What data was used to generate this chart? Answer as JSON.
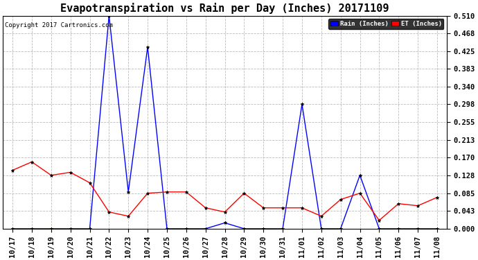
{
  "title": "Evapotranspiration vs Rain per Day (Inches) 20171109",
  "copyright_text": "Copyright 2017 Cartronics.com",
  "legend_rain": "Rain (Inches)",
  "legend_et": "ET (Inches)",
  "x_labels": [
    "10/17",
    "10/18",
    "10/19",
    "10/20",
    "10/21",
    "10/22",
    "10/23",
    "10/24",
    "10/25",
    "10/26",
    "10/27",
    "10/28",
    "10/29",
    "10/30",
    "10/31",
    "11/01",
    "11/02",
    "11/03",
    "11/04",
    "11/05",
    "11/06",
    "11/07",
    "11/08"
  ],
  "rain_values": [
    0.0,
    0.0,
    0.0,
    0.0,
    0.0,
    0.51,
    0.088,
    0.435,
    0.0,
    0.0,
    0.0,
    0.014,
    0.0,
    0.0,
    0.0,
    0.298,
    0.0,
    0.0,
    0.128,
    0.0,
    0.0,
    0.0,
    0.0
  ],
  "et_values": [
    0.14,
    0.16,
    0.128,
    0.135,
    0.11,
    0.04,
    0.03,
    0.085,
    0.088,
    0.088,
    0.05,
    0.04,
    0.085,
    0.05,
    0.05,
    0.05,
    0.03,
    0.07,
    0.085,
    0.02,
    0.06,
    0.055,
    0.075
  ],
  "ylim": [
    0.0,
    0.51
  ],
  "yticks": [
    0.0,
    0.043,
    0.085,
    0.128,
    0.17,
    0.213,
    0.255,
    0.298,
    0.34,
    0.383,
    0.425,
    0.468,
    0.51
  ],
  "rain_color": "#0000ff",
  "et_color": "#ff0000",
  "grid_color": "#bbbbbb",
  "bg_color": "#ffffff",
  "title_fontsize": 11,
  "label_fontsize": 7.5
}
